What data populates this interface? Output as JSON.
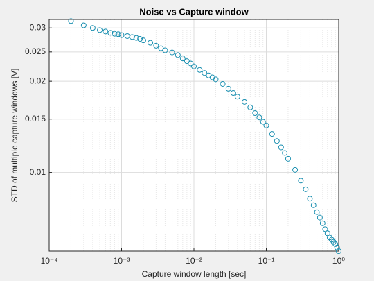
{
  "chart_data": {
    "type": "scatter",
    "title": "Noise vs Capture window",
    "x_label": "Capture window length [sec]",
    "y_label": "STD of multiple capture windows [V]",
    "x": [
      0.0002,
      0.0003,
      0.0004,
      0.0005,
      0.0006,
      0.0007,
      0.0008,
      0.0009,
      0.001,
      0.0012,
      0.0014,
      0.0016,
      0.0018,
      0.002,
      0.0025,
      0.003,
      0.0035,
      0.004,
      0.005,
      0.006,
      0.007,
      0.008,
      0.009,
      0.01,
      0.012,
      0.014,
      0.016,
      0.018,
      0.02,
      0.025,
      0.03,
      0.035,
      0.04,
      0.05,
      0.06,
      0.07,
      0.08,
      0.09,
      0.1,
      0.12,
      0.14,
      0.16,
      0.18,
      0.2,
      0.25,
      0.3,
      0.35,
      0.4,
      0.45,
      0.5,
      0.55,
      0.6,
      0.65,
      0.7,
      0.75,
      0.8,
      0.85,
      0.9,
      0.95,
      1.0
    ],
    "series": [
      {
        "name": "STD",
        "color": "#1a8fb0",
        "values": [
          0.0316,
          0.0306,
          0.03,
          0.0295,
          0.0292,
          0.0289,
          0.0287,
          0.0286,
          0.0284,
          0.0282,
          0.028,
          0.0278,
          0.0276,
          0.0273,
          0.0268,
          0.0262,
          0.0257,
          0.0253,
          0.0249,
          0.0244,
          0.0238,
          0.0233,
          0.0229,
          0.0224,
          0.0218,
          0.0213,
          0.0209,
          0.0206,
          0.0203,
          0.0196,
          0.0189,
          0.0183,
          0.0178,
          0.0171,
          0.0164,
          0.0157,
          0.0152,
          0.0147,
          0.0143,
          0.0134,
          0.0127,
          0.0121,
          0.0116,
          0.0111,
          0.0102,
          0.0094,
          0.0088,
          0.0082,
          0.0078,
          0.0074,
          0.0071,
          0.0068,
          0.0065,
          0.0063,
          0.0061,
          0.006,
          0.0059,
          0.0058,
          0.00565,
          0.0055
        ]
      }
    ],
    "x_scale": "log",
    "y_scale": "log",
    "xlim": [
      0.0001,
      1
    ],
    "ylim": [
      0.0055,
      0.032
    ],
    "xticks": [
      {
        "value": 0.0001,
        "label": "10⁻⁴"
      },
      {
        "value": 0.001,
        "label": "10⁻³"
      },
      {
        "value": 0.01,
        "label": "10⁻²"
      },
      {
        "value": 0.1,
        "label": "10⁻¹"
      },
      {
        "value": 1,
        "label": "10⁰"
      }
    ],
    "yticks": [
      0.01,
      0.015,
      0.02,
      0.025,
      0.03
    ],
    "grid": true
  }
}
